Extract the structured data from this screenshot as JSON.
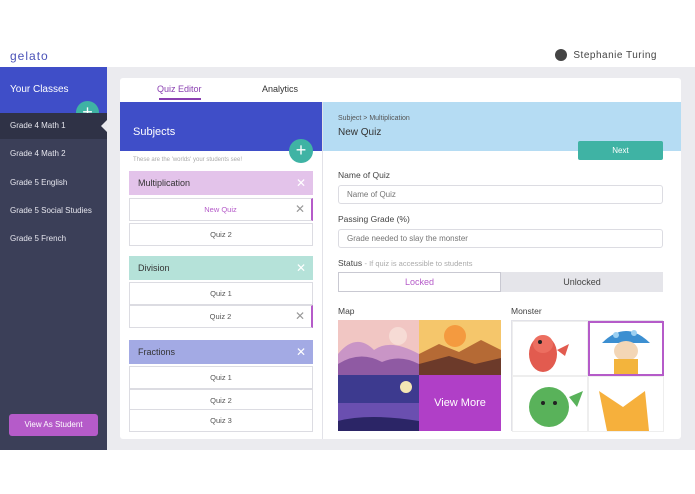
{
  "app": {
    "brand": "gelato",
    "user_name": "Stephanie Turing"
  },
  "sidebar": {
    "header": "Your Classes",
    "add_icon": "plus-icon",
    "classes": [
      {
        "label": "Grade 4 Math 1",
        "active": true
      },
      {
        "label": "Grade 4 Math 2",
        "active": false
      },
      {
        "label": "Grade 5 English",
        "active": false
      },
      {
        "label": "Grade 5 Social Studies",
        "active": false
      },
      {
        "label": "Grade 5 French",
        "active": false
      }
    ],
    "view_as_student": "View As Student"
  },
  "tabs": [
    {
      "label": "Quiz Editor",
      "active": true
    },
    {
      "label": "Analytics",
      "active": false
    }
  ],
  "subjects": {
    "title": "Subjects",
    "hint": "These are the 'worlds' your students see!",
    "groups": [
      {
        "name": "Multiplication",
        "color": "#e3c3ea",
        "quizzes": [
          "New Quiz",
          "Quiz 2"
        ]
      },
      {
        "name": "Division",
        "color": "#b5e2d9",
        "quizzes": [
          "Quiz 1",
          "Quiz 2"
        ]
      },
      {
        "name": "Fractions",
        "color": "#a3aae4",
        "quizzes": [
          "Quiz 1",
          "Quiz 2",
          "Quiz 3"
        ]
      }
    ]
  },
  "editor": {
    "breadcrumb": "Subject > Multiplication",
    "title": "New Quiz",
    "next_label": "Next",
    "name_label": "Name of Quiz",
    "name_placeholder": "Name of Quiz",
    "passing_label": "Passing Grade (%)",
    "passing_placeholder": "Grade needed to slay the monster",
    "status_label": "Status",
    "status_hint": "- If quiz is accessible to students",
    "status_locked": "Locked",
    "status_unlocked": "Unlocked",
    "map_label": "Map",
    "view_more": "View More",
    "monster_label": "Monster"
  },
  "colors": {
    "accent": "#3f4ec8",
    "teal": "#3fb3a4",
    "purple": "#b55bc9",
    "sidebar": "#3b3f58"
  }
}
